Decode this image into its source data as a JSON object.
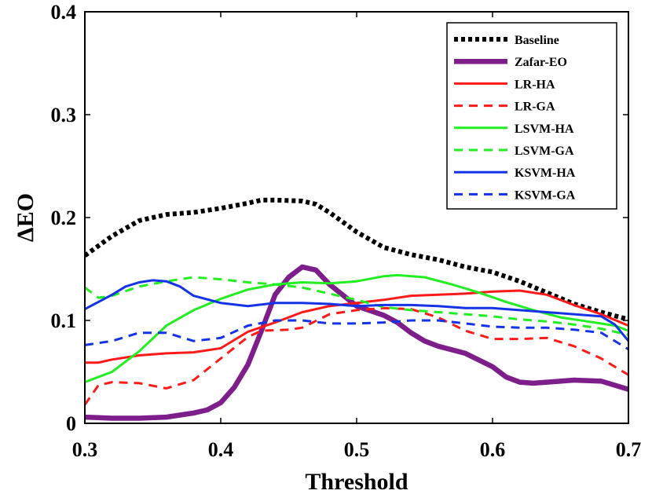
{
  "chart_data": {
    "type": "line",
    "title": "",
    "xlabel": "Threshold",
    "ylabel": "ΔEO",
    "xlim": [
      0.3,
      0.7
    ],
    "ylim": [
      0,
      0.4
    ],
    "xticks": [
      "0.3",
      "0.4",
      "0.5",
      "0.6",
      "0.7"
    ],
    "yticks": [
      "0",
      "0.1",
      "0.2",
      "0.3",
      "0.4"
    ],
    "grid": false,
    "legend_position": "top-right",
    "series": [
      {
        "name": "Baseline",
        "color": "#000000",
        "style": "dotted-thick",
        "x": [
          0.3,
          0.32,
          0.34,
          0.36,
          0.38,
          0.4,
          0.42,
          0.43,
          0.44,
          0.46,
          0.47,
          0.48,
          0.5,
          0.52,
          0.54,
          0.56,
          0.58,
          0.6,
          0.62,
          0.64,
          0.66,
          0.68,
          0.7
        ],
        "y": [
          0.163,
          0.182,
          0.197,
          0.203,
          0.205,
          0.209,
          0.214,
          0.217,
          0.217,
          0.216,
          0.213,
          0.205,
          0.186,
          0.171,
          0.164,
          0.159,
          0.152,
          0.147,
          0.138,
          0.127,
          0.116,
          0.108,
          0.101
        ]
      },
      {
        "name": "Zafar-EO",
        "color": "#7e1e8b",
        "style": "solid-thick",
        "x": [
          0.3,
          0.32,
          0.34,
          0.36,
          0.38,
          0.39,
          0.4,
          0.41,
          0.42,
          0.43,
          0.44,
          0.45,
          0.46,
          0.47,
          0.48,
          0.5,
          0.52,
          0.53,
          0.54,
          0.55,
          0.56,
          0.58,
          0.6,
          0.61,
          0.62,
          0.63,
          0.64,
          0.66,
          0.68,
          0.7
        ],
        "y": [
          0.006,
          0.005,
          0.005,
          0.006,
          0.01,
          0.013,
          0.02,
          0.035,
          0.057,
          0.09,
          0.125,
          0.142,
          0.152,
          0.149,
          0.135,
          0.114,
          0.105,
          0.098,
          0.088,
          0.08,
          0.075,
          0.068,
          0.055,
          0.045,
          0.04,
          0.039,
          0.04,
          0.042,
          0.041,
          0.033
        ]
      },
      {
        "name": "LR-HA",
        "color": "#ff1a1a",
        "style": "solid",
        "x": [
          0.3,
          0.31,
          0.32,
          0.34,
          0.36,
          0.38,
          0.4,
          0.42,
          0.44,
          0.46,
          0.48,
          0.5,
          0.52,
          0.54,
          0.56,
          0.58,
          0.6,
          0.62,
          0.64,
          0.66,
          0.68,
          0.7
        ],
        "y": [
          0.059,
          0.059,
          0.062,
          0.066,
          0.068,
          0.069,
          0.073,
          0.089,
          0.098,
          0.108,
          0.114,
          0.117,
          0.12,
          0.124,
          0.125,
          0.126,
          0.128,
          0.129,
          0.125,
          0.115,
          0.106,
          0.095
        ]
      },
      {
        "name": "LR-GA",
        "color": "#ff1a1a",
        "style": "dashed",
        "x": [
          0.3,
          0.31,
          0.32,
          0.34,
          0.36,
          0.38,
          0.4,
          0.42,
          0.43,
          0.45,
          0.46,
          0.48,
          0.5,
          0.52,
          0.54,
          0.56,
          0.58,
          0.6,
          0.62,
          0.64,
          0.66,
          0.68,
          0.7
        ],
        "y": [
          0.018,
          0.037,
          0.04,
          0.039,
          0.034,
          0.042,
          0.063,
          0.084,
          0.09,
          0.091,
          0.093,
          0.106,
          0.11,
          0.112,
          0.111,
          0.103,
          0.09,
          0.082,
          0.082,
          0.083,
          0.075,
          0.063,
          0.047
        ]
      },
      {
        "name": "LSVM-HA",
        "color": "#22ee22",
        "style": "solid",
        "x": [
          0.3,
          0.32,
          0.34,
          0.36,
          0.38,
          0.4,
          0.42,
          0.44,
          0.46,
          0.48,
          0.5,
          0.52,
          0.53,
          0.55,
          0.57,
          0.59,
          0.61,
          0.63,
          0.65,
          0.67,
          0.69,
          0.7
        ],
        "y": [
          0.04,
          0.05,
          0.07,
          0.095,
          0.11,
          0.121,
          0.13,
          0.135,
          0.137,
          0.136,
          0.138,
          0.143,
          0.144,
          0.142,
          0.135,
          0.127,
          0.118,
          0.11,
          0.103,
          0.099,
          0.095,
          0.09
        ]
      },
      {
        "name": "LSVM-GA",
        "color": "#22ee22",
        "style": "dashed",
        "x": [
          0.3,
          0.31,
          0.32,
          0.34,
          0.36,
          0.38,
          0.4,
          0.42,
          0.44,
          0.46,
          0.48,
          0.5,
          0.52,
          0.54,
          0.56,
          0.58,
          0.6,
          0.62,
          0.64,
          0.66,
          0.68,
          0.7
        ],
        "y": [
          0.132,
          0.122,
          0.124,
          0.133,
          0.138,
          0.142,
          0.14,
          0.137,
          0.135,
          0.132,
          0.126,
          0.12,
          0.113,
          0.11,
          0.108,
          0.106,
          0.104,
          0.101,
          0.099,
          0.096,
          0.092,
          0.086
        ]
      },
      {
        "name": "KSVM-HA",
        "color": "#1432e6",
        "style": "solid",
        "x": [
          0.3,
          0.32,
          0.33,
          0.34,
          0.35,
          0.36,
          0.37,
          0.38,
          0.4,
          0.42,
          0.44,
          0.46,
          0.48,
          0.5,
          0.52,
          0.54,
          0.56,
          0.58,
          0.6,
          0.62,
          0.64,
          0.66,
          0.68,
          0.69,
          0.7
        ],
        "y": [
          0.111,
          0.125,
          0.133,
          0.137,
          0.139,
          0.138,
          0.133,
          0.124,
          0.117,
          0.114,
          0.117,
          0.117,
          0.116,
          0.114,
          0.115,
          0.115,
          0.114,
          0.112,
          0.112,
          0.11,
          0.108,
          0.106,
          0.104,
          0.096,
          0.08
        ]
      },
      {
        "name": "KSVM-GA",
        "color": "#1432e6",
        "style": "dashed",
        "x": [
          0.3,
          0.32,
          0.34,
          0.36,
          0.38,
          0.4,
          0.42,
          0.44,
          0.46,
          0.48,
          0.5,
          0.52,
          0.54,
          0.56,
          0.58,
          0.6,
          0.62,
          0.64,
          0.66,
          0.68,
          0.7
        ],
        "y": [
          0.076,
          0.08,
          0.088,
          0.088,
          0.08,
          0.083,
          0.095,
          0.1,
          0.1,
          0.097,
          0.097,
          0.098,
          0.1,
          0.1,
          0.097,
          0.094,
          0.093,
          0.093,
          0.091,
          0.088,
          0.072
        ]
      }
    ]
  }
}
